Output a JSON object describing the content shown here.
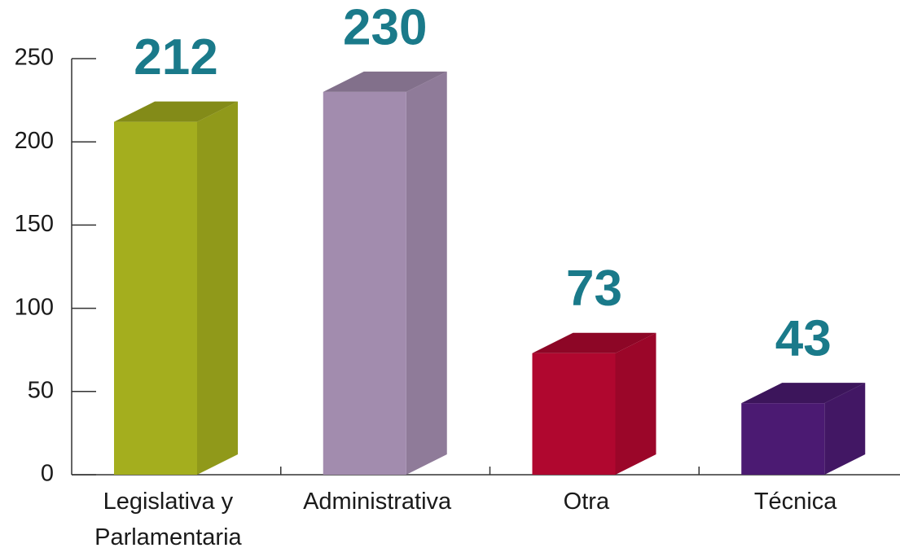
{
  "chart_data": {
    "type": "bar3d",
    "categories": [
      "Legislativa y Parlamentaria",
      "Administrativa",
      "Otra",
      "Técnica"
    ],
    "values": [
      212,
      230,
      73,
      43
    ],
    "colors": [
      "#a4ae1e",
      "#a28cae",
      "#b0072f",
      "#4b1a72"
    ],
    "ylim": [
      0,
      250
    ],
    "yticks": [
      0,
      50,
      100,
      150,
      200,
      250
    ],
    "value_label_color": "#1a7a8a"
  }
}
